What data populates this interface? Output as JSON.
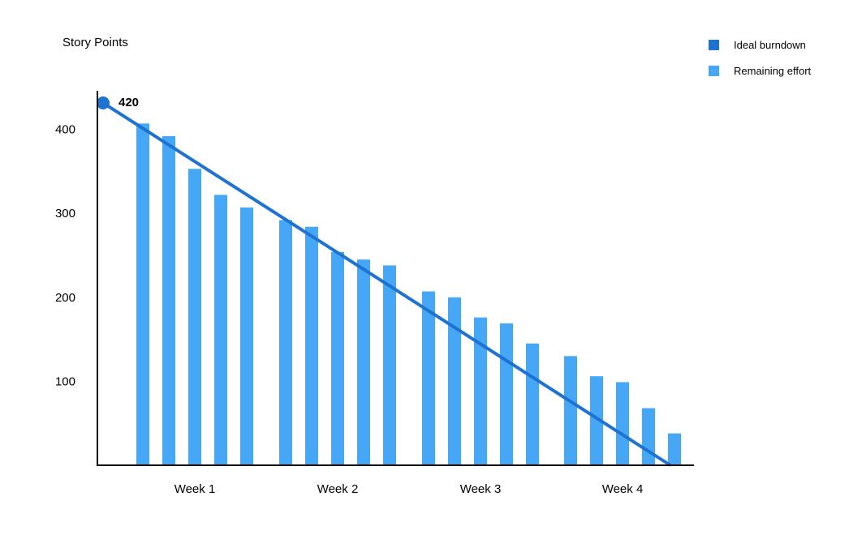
{
  "chart_data": {
    "type": "bar",
    "ylabel": "Story Points",
    "xlabel": "",
    "ylim": [
      0,
      450
    ],
    "yticks": [
      100,
      200,
      300,
      400
    ],
    "x_groups": [
      "Week 1",
      "Week 2",
      "Week 3",
      "Week 4"
    ],
    "grid": false,
    "legend_position": "top-right",
    "series": [
      {
        "name": "Ideal burndown",
        "type": "line",
        "color": "#1E73D2",
        "start": 420,
        "end": 0,
        "start_label": "420"
      },
      {
        "name": "Remaining effort",
        "type": "bar",
        "color": "#45A7F5",
        "groups": [
          [
            407,
            392,
            353,
            322,
            307
          ],
          [
            292,
            284,
            254,
            245,
            238
          ],
          [
            207,
            200,
            176,
            169,
            145
          ],
          [
            130,
            106,
            99,
            68,
            38
          ]
        ]
      }
    ]
  }
}
